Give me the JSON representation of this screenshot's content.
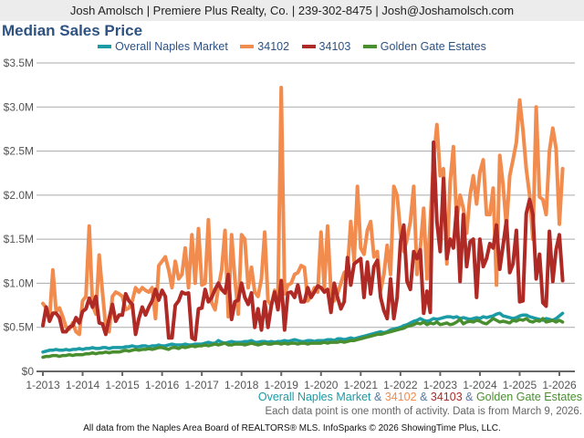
{
  "header": {
    "contact": "Josh Amolsch | Premiere Plus Realty, Co. | 239-302-8475 | Josh@Joshamolsch.com"
  },
  "chart_data": {
    "type": "line",
    "title": "Median Sales Price",
    "xlabel": "",
    "ylabel": "",
    "ylim": [
      0,
      3500000
    ],
    "y_ticks": [
      "$0",
      "$0.5M",
      "$1.0M",
      "$1.5M",
      "$2.0M",
      "$2.5M",
      "$3.0M",
      "$3.5M"
    ],
    "x_ticks": [
      "1-2013",
      "1-2014",
      "1-2015",
      "1-2016",
      "1-2017",
      "1-2018",
      "1-2019",
      "1-2020",
      "1-2021",
      "1-2022",
      "1-2023",
      "1-2024",
      "1-2025",
      "1-2026"
    ],
    "x_start": "1-2013",
    "x_end": "2-2026",
    "x_interval": "month",
    "units": "$M",
    "grid": true,
    "legend_position": "top",
    "series": [
      {
        "name": "34102",
        "color": "#f28c4e",
        "values": [
          0.77,
          0.72,
          0.6,
          1.15,
          0.68,
          0.72,
          0.62,
          0.5,
          0.48,
          0.55,
          0.45,
          0.42,
          0.8,
          0.85,
          1.65,
          0.75,
          0.65,
          1.32,
          0.9,
          0.5,
          0.45,
          0.85,
          0.9,
          0.88,
          0.85,
          0.7,
          0.72,
          0.8,
          0.95,
          0.9,
          0.95,
          0.92,
          0.9,
          0.95,
          0.6,
          1.2,
          1.25,
          1.3,
          1.15,
          0.95,
          1.25,
          1.05,
          1.1,
          1.4,
          0.95,
          1.55,
          1.0,
          1.62,
          0.98,
          1.0,
          1.72,
          0.78,
          0.7,
          0.95,
          1.15,
          1.6,
          0.62,
          1.55,
          1.05,
          0.65,
          1.55,
          1.5,
          0.95,
          1.18,
          0.9,
          0.85,
          1.05,
          1.58,
          0.8,
          0.75,
          0.92,
          0.85,
          3.22,
          0.88,
          0.98,
          1.0,
          1.1,
          1.12,
          1.2,
          1.18,
          0.8,
          0.85,
          0.95,
          0.9,
          1.58,
          0.95,
          1.65,
          0.9,
          0.8,
          0.88,
          1.0,
          1.12,
          1.15,
          1.7,
          1.25,
          2.1,
          1.4,
          1.33,
          1.6,
          1.7,
          1.3,
          1.36,
          0.92,
          1.1,
          1.43,
          1.1,
          2.1,
          2.0,
          1.57,
          1.36,
          1.5,
          1.7,
          2.1,
          1.1,
          1.4,
          1.85,
          1.05,
          1.7,
          2.4,
          2.8,
          2.22,
          2.3,
          1.22,
          2.15,
          2.55,
          1.7,
          2.0,
          1.85,
          1.57,
          2.0,
          2.22,
          1.9,
          2.26,
          2.4,
          1.78,
          1.78,
          2.08,
          0.98,
          2.45,
          2.12,
          1.64,
          2.22,
          2.4,
          2.6,
          3.08,
          2.74,
          2.3,
          2.0,
          1.5,
          3.0,
          1.98,
          1.95,
          1.78,
          2.5,
          2.76,
          2.53,
          1.67,
          2.3
        ]
      },
      {
        "name": "34103",
        "color": "#b02a25",
        "values": [
          0.52,
          0.73,
          0.57,
          0.66,
          0.66,
          0.61,
          0.45,
          0.45,
          0.5,
          0.52,
          0.61,
          0.55,
          0.68,
          0.71,
          0.83,
          0.73,
          0.85,
          0.55,
          0.54,
          0.42,
          0.6,
          0.76,
          0.57,
          0.64,
          0.64,
          0.88,
          0.8,
          0.76,
          0.42,
          0.6,
          0.73,
          0.64,
          0.73,
          0.8,
          0.93,
          0.81,
          0.92,
          0.85,
          0.38,
          0.38,
          0.75,
          0.8,
          0.9,
          0.88,
          0.89,
          0.38,
          0.36,
          0.71,
          0.72,
          0.93,
          0.79,
          0.84,
          0.93,
          1.0,
          0.93,
          0.89,
          1.1,
          0.59,
          0.79,
          0.81,
          1.0,
          0.84,
          0.76,
          0.89,
          0.5,
          0.71,
          0.47,
          0.79,
          0.5,
          0.75,
          0.9,
          0.7,
          1.03,
          0.47,
          0.89,
          0.9,
          0.84,
          0.98,
          0.79,
          0.79,
          0.95,
          0.84,
          0.9,
          0.97,
          0.95,
          0.9,
          0.93,
          0.67,
          1.0,
          0.84,
          0.71,
          0.79,
          1.29,
          0.98,
          1.22,
          1.25,
          1.28,
          0.84,
          1.24,
          0.88,
          1.19,
          1.26,
          0.84,
          0.69,
          0.6,
          1.05,
          0.6,
          0.84,
          1.47,
          1.66,
          1.02,
          0.93,
          1.36,
          1.28,
          1.38,
          0.66,
          0.91,
          0.67,
          2.6,
          1.7,
          1.36,
          2.19,
          1.28,
          1.5,
          1.4,
          1.86,
          1.02,
          1.78,
          1.19,
          1.47,
          1.5,
          0.84,
          1.5,
          1.19,
          1.28,
          1.45,
          1.4,
          1.66,
          1.16,
          1.43,
          1.71,
          1.12,
          1.22,
          1.6,
          0.79,
          0.8,
          1.79,
          1.95,
          1.78,
          1.05,
          1.33,
          0.78,
          0.74,
          1.59,
          1.02,
          1.38,
          1.55,
          1.03
        ]
      },
      {
        "name": "Overall Naples Market",
        "color": "#1a9ba6",
        "values": [
          0.22,
          0.23,
          0.24,
          0.24,
          0.25,
          0.24,
          0.24,
          0.25,
          0.24,
          0.25,
          0.25,
          0.26,
          0.25,
          0.26,
          0.26,
          0.27,
          0.26,
          0.26,
          0.27,
          0.27,
          0.26,
          0.27,
          0.27,
          0.27,
          0.27,
          0.28,
          0.28,
          0.29,
          0.28,
          0.28,
          0.29,
          0.29,
          0.28,
          0.29,
          0.29,
          0.3,
          0.29,
          0.29,
          0.3,
          0.31,
          0.3,
          0.3,
          0.3,
          0.31,
          0.3,
          0.3,
          0.31,
          0.31,
          0.31,
          0.32,
          0.33,
          0.32,
          0.32,
          0.35,
          0.33,
          0.32,
          0.33,
          0.34,
          0.33,
          0.33,
          0.33,
          0.34,
          0.34,
          0.35,
          0.33,
          0.33,
          0.34,
          0.34,
          0.33,
          0.34,
          0.33,
          0.34,
          0.34,
          0.35,
          0.34,
          0.35,
          0.36,
          0.35,
          0.34,
          0.34,
          0.35,
          0.35,
          0.34,
          0.35,
          0.35,
          0.35,
          0.36,
          0.36,
          0.35,
          0.37,
          0.37,
          0.36,
          0.37,
          0.38,
          0.37,
          0.38,
          0.39,
          0.4,
          0.41,
          0.42,
          0.43,
          0.44,
          0.45,
          0.44,
          0.45,
          0.47,
          0.48,
          0.49,
          0.5,
          0.52,
          0.53,
          0.55,
          0.57,
          0.58,
          0.6,
          0.58,
          0.57,
          0.58,
          0.6,
          0.59,
          0.6,
          0.61,
          0.62,
          0.62,
          0.61,
          0.62,
          0.6,
          0.61,
          0.6,
          0.59,
          0.6,
          0.61,
          0.6,
          0.62,
          0.61,
          0.62,
          0.63,
          0.65,
          0.66,
          0.63,
          0.62,
          0.61,
          0.6,
          0.61,
          0.63,
          0.64,
          0.64,
          0.62,
          0.61,
          0.6,
          0.59,
          0.58,
          0.6,
          0.59,
          0.58,
          0.6,
          0.63,
          0.66
        ]
      },
      {
        "name": "Golden Gate Estates",
        "color": "#4a8f2f",
        "values": [
          0.16,
          0.17,
          0.17,
          0.18,
          0.18,
          0.17,
          0.18,
          0.18,
          0.19,
          0.18,
          0.19,
          0.19,
          0.19,
          0.2,
          0.2,
          0.21,
          0.2,
          0.21,
          0.21,
          0.22,
          0.21,
          0.22,
          0.22,
          0.22,
          0.23,
          0.24,
          0.23,
          0.24,
          0.25,
          0.24,
          0.25,
          0.25,
          0.26,
          0.25,
          0.26,
          0.27,
          0.27,
          0.26,
          0.25,
          0.27,
          0.27,
          0.26,
          0.28,
          0.27,
          0.28,
          0.29,
          0.28,
          0.29,
          0.29,
          0.3,
          0.29,
          0.3,
          0.31,
          0.3,
          0.31,
          0.32,
          0.3,
          0.3,
          0.31,
          0.31,
          0.31,
          0.3,
          0.31,
          0.32,
          0.31,
          0.3,
          0.31,
          0.32,
          0.31,
          0.31,
          0.32,
          0.32,
          0.31,
          0.32,
          0.31,
          0.32,
          0.32,
          0.31,
          0.32,
          0.32,
          0.31,
          0.32,
          0.32,
          0.32,
          0.32,
          0.33,
          0.32,
          0.33,
          0.33,
          0.33,
          0.34,
          0.33,
          0.34,
          0.35,
          0.35,
          0.36,
          0.37,
          0.38,
          0.39,
          0.4,
          0.41,
          0.42,
          0.42,
          0.43,
          0.44,
          0.45,
          0.46,
          0.47,
          0.48,
          0.49,
          0.51,
          0.52,
          0.53,
          0.55,
          0.54,
          0.56,
          0.53,
          0.55,
          0.54,
          0.56,
          0.53,
          0.54,
          0.55,
          0.53,
          0.54,
          0.56,
          0.59,
          0.54,
          0.56,
          0.57,
          0.56,
          0.58,
          0.57,
          0.55,
          0.54,
          0.57,
          0.6,
          0.58,
          0.56,
          0.57,
          0.56,
          0.55,
          0.58,
          0.57,
          0.59,
          0.58,
          0.6,
          0.57,
          0.56,
          0.58,
          0.57,
          0.6,
          0.56,
          0.57,
          0.58,
          0.56,
          0.58,
          0.56
        ]
      }
    ]
  },
  "legend": [
    {
      "label": "Overall Naples Market",
      "color": "#1a9ba6"
    },
    {
      "label": "34102",
      "color": "#f28c4e"
    },
    {
      "label": "34103",
      "color": "#b02a25"
    },
    {
      "label": "Golden Gate Estates",
      "color": "#4a8f2f"
    }
  ],
  "caption": {
    "part1": "Overall Naples Market",
    "amp": " & ",
    "part2": "34102",
    "part3": "34103",
    "part4": "Golden Gate Estates"
  },
  "note": "Each data point is one month of activity. Data is from March 9, 2026.",
  "footer": "All data from the Naples Area Board of REALTORS® MLS. InfoSparks © 2026 ShowingTime Plus, LLC."
}
